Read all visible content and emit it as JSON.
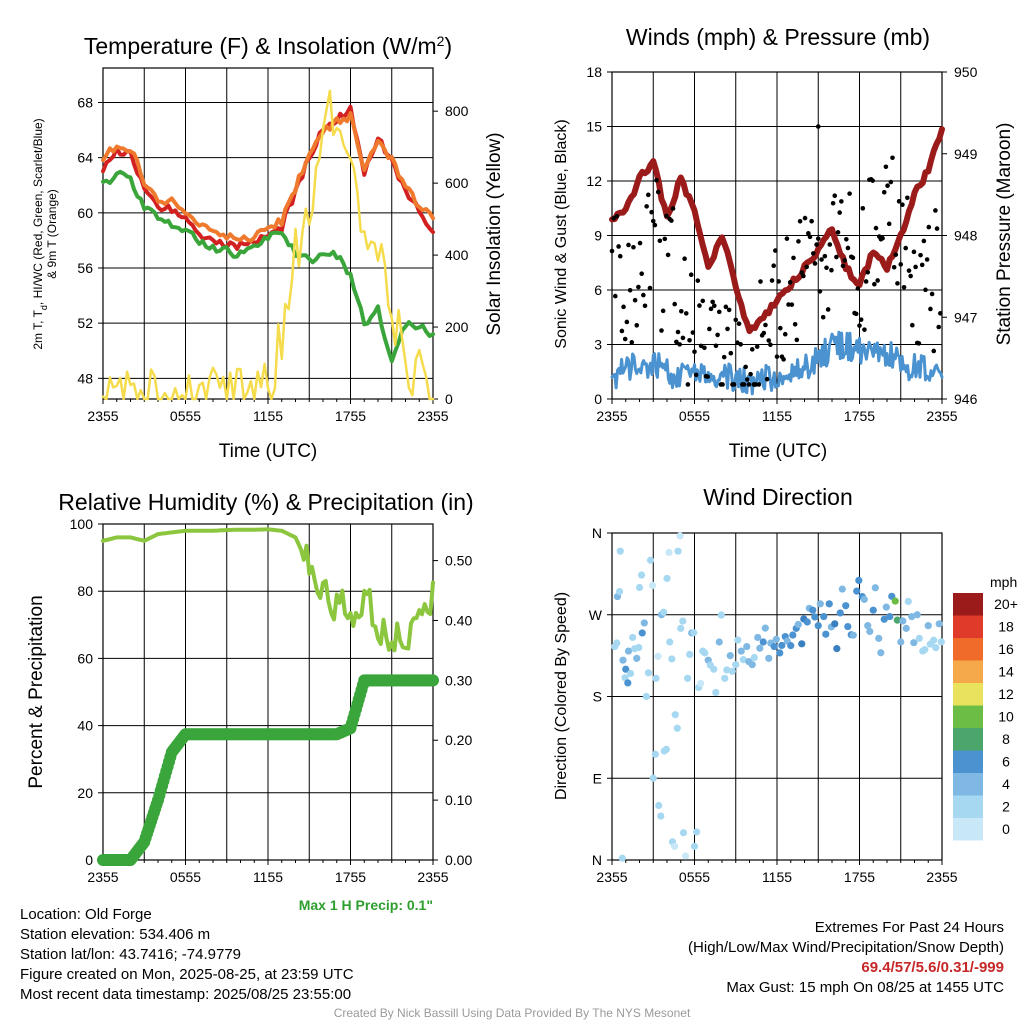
{
  "colors": {
    "temp": "#d32020",
    "heat_index": "#ef7a2e",
    "dewpoint": "#3aa53a",
    "insolation": "#f5dc4c",
    "sonic_wind": "#4b92d0",
    "gust": "#000000",
    "pressure": "#9b1b1b",
    "rh": "#8cc63f",
    "precip": "#3aa53a",
    "precip_label": "#2e9e2e",
    "extremes": "#c62828",
    "wind_speed_scale": [
      "#c8e8f8",
      "#a7d8f2",
      "#7fb9e3",
      "#4b92d0",
      "#3a7fc0",
      "#4aa66a",
      "#6cbd45",
      "#e8e25c",
      "#f5a94a",
      "#f06a2a",
      "#e03a2a",
      "#c8201e",
      "#9b1b1b"
    ]
  },
  "chart_data": [
    {
      "type": "line",
      "title": "Temperature (F) & Insolation (W/m²)",
      "xlabel": "Time (UTC)",
      "ylabel": "2m T, T_d, HI/WC (Red, Green, Scarlet/Blue) & 9m T (Orange)",
      "y2label": "Solar Insolation (Yellow)",
      "x_ticks": [
        "2355",
        "0555",
        "1155",
        "1755",
        "2355"
      ],
      "ylim": [
        46.5,
        70.5
      ],
      "y_ticks": [
        48,
        52,
        56,
        60,
        64,
        68
      ],
      "y2lim": [
        0,
        920
      ],
      "y2_ticks": [
        0,
        200,
        400,
        600,
        800
      ],
      "x_hours": [
        0,
        1,
        2,
        3,
        4,
        5,
        6,
        7,
        8,
        9,
        10,
        11,
        12,
        13,
        14,
        15,
        16,
        17,
        18,
        19,
        20,
        21,
        22,
        23,
        24
      ],
      "series": [
        {
          "role": "2m T",
          "color_key": "temp",
          "values": [
            63.2,
            64.4,
            64.3,
            61.7,
            60.5,
            60.2,
            59.4,
            58.4,
            58.0,
            57.7,
            57.6,
            57.8,
            58.5,
            59.0,
            61.5,
            64.0,
            66.0,
            66.8,
            67.5,
            63.0,
            65.3,
            64.0,
            61.5,
            60.2,
            58.6
          ]
        },
        {
          "role": "9m T",
          "color_key": "heat_index",
          "values": [
            64.1,
            64.8,
            64.7,
            62.3,
            61.0,
            60.8,
            60.2,
            59.2,
            58.6,
            58.2,
            58.0,
            58.2,
            58.9,
            59.4,
            61.8,
            64.2,
            65.8,
            66.6,
            67.0,
            63.3,
            65.0,
            63.8,
            61.8,
            60.6,
            59.6
          ]
        },
        {
          "role": "Td",
          "color_key": "dewpoint",
          "values": [
            62.0,
            62.8,
            62.4,
            60.5,
            59.5,
            59.2,
            58.7,
            58.0,
            57.5,
            57.2,
            57.0,
            57.5,
            58.2,
            58.8,
            57.0,
            56.5,
            56.8,
            57.0,
            55.5,
            52.0,
            53.0,
            49.0,
            52.0,
            51.7,
            51.2
          ]
        },
        {
          "role": "Insolation",
          "color_key": "insolation",
          "axis": "right",
          "values": [
            0,
            0,
            0,
            0,
            0,
            0,
            0,
            0,
            0,
            0,
            0,
            0,
            30,
            150,
            400,
            520,
            740,
            820,
            600,
            500,
            420,
            240,
            140,
            50,
            0
          ]
        }
      ]
    },
    {
      "type": "line",
      "title": "Winds (mph) & Pressure (mb)",
      "xlabel": "Time (UTC)",
      "ylabel": "Sonic Wind & Gust (Blue, Black)",
      "y2label": "Station Pressure (Maroon)",
      "x_ticks": [
        "2355",
        "0555",
        "1155",
        "1755",
        "2355"
      ],
      "ylim": [
        0,
        18
      ],
      "y_ticks": [
        0,
        3,
        6,
        9,
        12,
        15,
        18
      ],
      "y2lim": [
        946,
        950
      ],
      "y2_ticks": [
        946,
        947,
        948,
        949,
        950
      ],
      "x_hours": [
        0,
        1,
        2,
        3,
        4,
        5,
        6,
        7,
        8,
        9,
        10,
        11,
        12,
        13,
        14,
        15,
        16,
        17,
        18,
        19,
        20,
        21,
        22,
        23,
        24
      ],
      "series": [
        {
          "role": "Pressure",
          "color_key": "pressure",
          "axis": "right",
          "values": [
            948.2,
            948.3,
            948.7,
            948.9,
            948.2,
            948.7,
            948.3,
            947.6,
            948.0,
            947.4,
            946.8,
            947.0,
            947.2,
            947.4,
            947.6,
            947.8,
            948.1,
            947.6,
            947.4,
            947.8,
            947.6,
            948.0,
            948.5,
            948.8,
            949.3
          ]
        },
        {
          "role": "Sonic Wind",
          "color_key": "sonic_wind",
          "values": [
            1.2,
            1.8,
            1.6,
            1.9,
            1.4,
            1.2,
            1.5,
            1.3,
            1.4,
            1.0,
            0.9,
            1.1,
            1.2,
            1.6,
            1.8,
            2.2,
            2.8,
            3.0,
            2.6,
            2.4,
            2.5,
            1.9,
            1.8,
            1.5,
            1.2
          ]
        },
        {
          "role": "Gust",
          "color_key": "gust",
          "mode": "points",
          "values": [
            7.5,
            6.0,
            5.5,
            9.0,
            7.0,
            4.5,
            3.5,
            3.0,
            2.0,
            2.5,
            2.0,
            3.0,
            5.0,
            5.5,
            8.0,
            6.5,
            8.0,
            8.5,
            7.0,
            9.0,
            10.0,
            8.0,
            5.5,
            6.0,
            7.0
          ],
          "max_gust": 15,
          "max_gust_hour": 15
        }
      ]
    },
    {
      "type": "line",
      "title": "Relative Humidity (%) & Precipitation (in)",
      "xlabel": "",
      "ylabel": "Percent & Precipitation",
      "x_ticks": [
        "2355",
        "0555",
        "1155",
        "1755",
        "2355"
      ],
      "ylim": [
        0,
        100
      ],
      "y_ticks": [
        0,
        20,
        40,
        60,
        80,
        100
      ],
      "y2lim": [
        0,
        0.5611
      ],
      "y2_ticks": [
        "0.00",
        "0.10",
        "0.20",
        "0.30",
        "0.40",
        "0.50"
      ],
      "note": "Max 1 H Precip: 0.1\"",
      "x_hours": [
        0,
        1,
        2,
        3,
        4,
        5,
        6,
        7,
        8,
        9,
        10,
        11,
        12,
        13,
        14,
        15,
        16,
        17,
        18,
        19,
        20,
        21,
        22,
        23,
        24
      ],
      "series": [
        {
          "role": "RH",
          "color_key": "rh",
          "values": [
            95,
            96,
            96,
            95,
            97,
            97.5,
            98,
            98,
            98,
            98.2,
            98.3,
            98.3,
            98.4,
            98,
            96,
            87,
            80,
            76,
            72,
            80,
            68,
            66,
            62,
            72,
            78
          ]
        },
        {
          "role": "Precip",
          "color_key": "precip",
          "axis": "right",
          "values": [
            0.0,
            0.0,
            0.0,
            0.03,
            0.1,
            0.18,
            0.21,
            0.21,
            0.21,
            0.21,
            0.21,
            0.21,
            0.21,
            0.21,
            0.21,
            0.21,
            0.21,
            0.21,
            0.22,
            0.3,
            0.3,
            0.3,
            0.3,
            0.3,
            0.3
          ]
        }
      ]
    },
    {
      "type": "scatter",
      "title": "Wind Direction",
      "xlabel": "",
      "ylabel": "Direction (Colored By Speed)",
      "x_ticks": [
        "2355",
        "0555",
        "1155",
        "1755",
        "2355"
      ],
      "y_ticks": [
        "N",
        "E",
        "S",
        "W",
        "N"
      ],
      "ylim": [
        0,
        360
      ],
      "legend_title": "mph",
      "legend_labels": [
        "0",
        "2",
        "4",
        "6",
        "8",
        "10",
        "12",
        "14",
        "16",
        "18",
        "20+"
      ],
      "legend_position": "right",
      "points": [
        [
          0.2,
          235,
          1
        ],
        [
          0.4,
          290,
          2
        ],
        [
          0.6,
          340,
          1
        ],
        [
          0.8,
          220,
          2
        ],
        [
          1.0,
          210,
          3
        ],
        [
          1.2,
          230,
          2
        ],
        [
          1.5,
          245,
          1
        ],
        [
          1.8,
          222,
          2
        ],
        [
          2.0,
          300,
          1
        ],
        [
          2.2,
          250,
          3
        ],
        [
          2.5,
          180,
          1
        ],
        [
          2.8,
          330,
          1
        ],
        [
          3.0,
          90,
          1
        ],
        [
          3.2,
          200,
          1
        ],
        [
          3.4,
          60,
          1
        ],
        [
          3.6,
          270,
          2
        ],
        [
          3.8,
          120,
          1
        ],
        [
          4.0,
          310,
          1
        ],
        [
          4.2,
          240,
          1
        ],
        [
          4.4,
          20,
          1
        ],
        [
          4.6,
          160,
          1
        ],
        [
          4.8,
          340,
          1
        ],
        [
          5.0,
          255,
          1
        ],
        [
          5.2,
          30,
          1
        ],
        [
          5.5,
          200,
          1
        ],
        [
          5.8,
          250,
          2
        ],
        [
          6.0,
          15,
          1
        ],
        [
          6.3,
          190,
          1
        ],
        [
          6.6,
          230,
          1
        ],
        [
          7.0,
          220,
          2
        ],
        [
          7.4,
          210,
          1
        ],
        [
          7.8,
          240,
          2
        ],
        [
          8.2,
          200,
          1
        ],
        [
          8.6,
          225,
          2
        ],
        [
          9.0,
          215,
          1
        ],
        [
          9.4,
          230,
          2
        ],
        [
          9.8,
          235,
          2
        ],
        [
          10.2,
          215,
          2
        ],
        [
          10.6,
          245,
          2
        ],
        [
          11.0,
          240,
          3
        ],
        [
          11.4,
          222,
          2
        ],
        [
          11.8,
          235,
          3
        ],
        [
          12.2,
          228,
          3
        ],
        [
          12.6,
          246,
          3
        ],
        [
          13.0,
          236,
          3
        ],
        [
          13.4,
          255,
          3
        ],
        [
          13.8,
          238,
          4
        ],
        [
          14.2,
          262,
          3
        ],
        [
          14.6,
          275,
          3
        ],
        [
          15.0,
          258,
          3
        ],
        [
          15.4,
          268,
          3
        ],
        [
          15.8,
          282,
          3
        ],
        [
          16.2,
          260,
          4
        ],
        [
          16.6,
          272,
          3
        ],
        [
          17.0,
          280,
          3
        ],
        [
          17.4,
          248,
          3
        ],
        [
          17.8,
          296,
          3
        ],
        [
          18.2,
          290,
          3
        ],
        [
          18.6,
          258,
          2
        ],
        [
          19.0,
          275,
          3
        ],
        [
          19.4,
          244,
          2
        ],
        [
          19.8,
          265,
          3
        ],
        [
          20.2,
          268,
          3
        ],
        [
          20.6,
          285,
          6
        ],
        [
          21.0,
          240,
          2
        ],
        [
          21.4,
          255,
          2
        ],
        [
          21.8,
          268,
          2
        ],
        [
          22.2,
          270,
          2
        ],
        [
          22.6,
          230,
          1
        ],
        [
          23.0,
          258,
          2
        ],
        [
          23.4,
          242,
          1
        ],
        [
          23.8,
          260,
          2
        ]
      ]
    }
  ],
  "info": {
    "location": "Location: Old Forge",
    "elevation": "Station elevation: 534.406 m",
    "latlon": "Station lat/lon: 43.7416; -74.9779",
    "created": "Figure created on Mon, 2025-08-25, at 23:59 UTC",
    "recent": "Most recent data timestamp: 2025/08/25 23:55:00",
    "extremes_title": "Extremes For Past 24 Hours",
    "extremes_sub": "(High/Low/Max Wind/Precipitation/Snow Depth)",
    "extremes_values": "69.4/57/5.6/0.31/-999",
    "max_gust": "Max Gust: 15 mph On 08/25 at 1455 UTC"
  },
  "credit": "Created By Nick Bassill Using Data Provided By The NYS Mesonet"
}
